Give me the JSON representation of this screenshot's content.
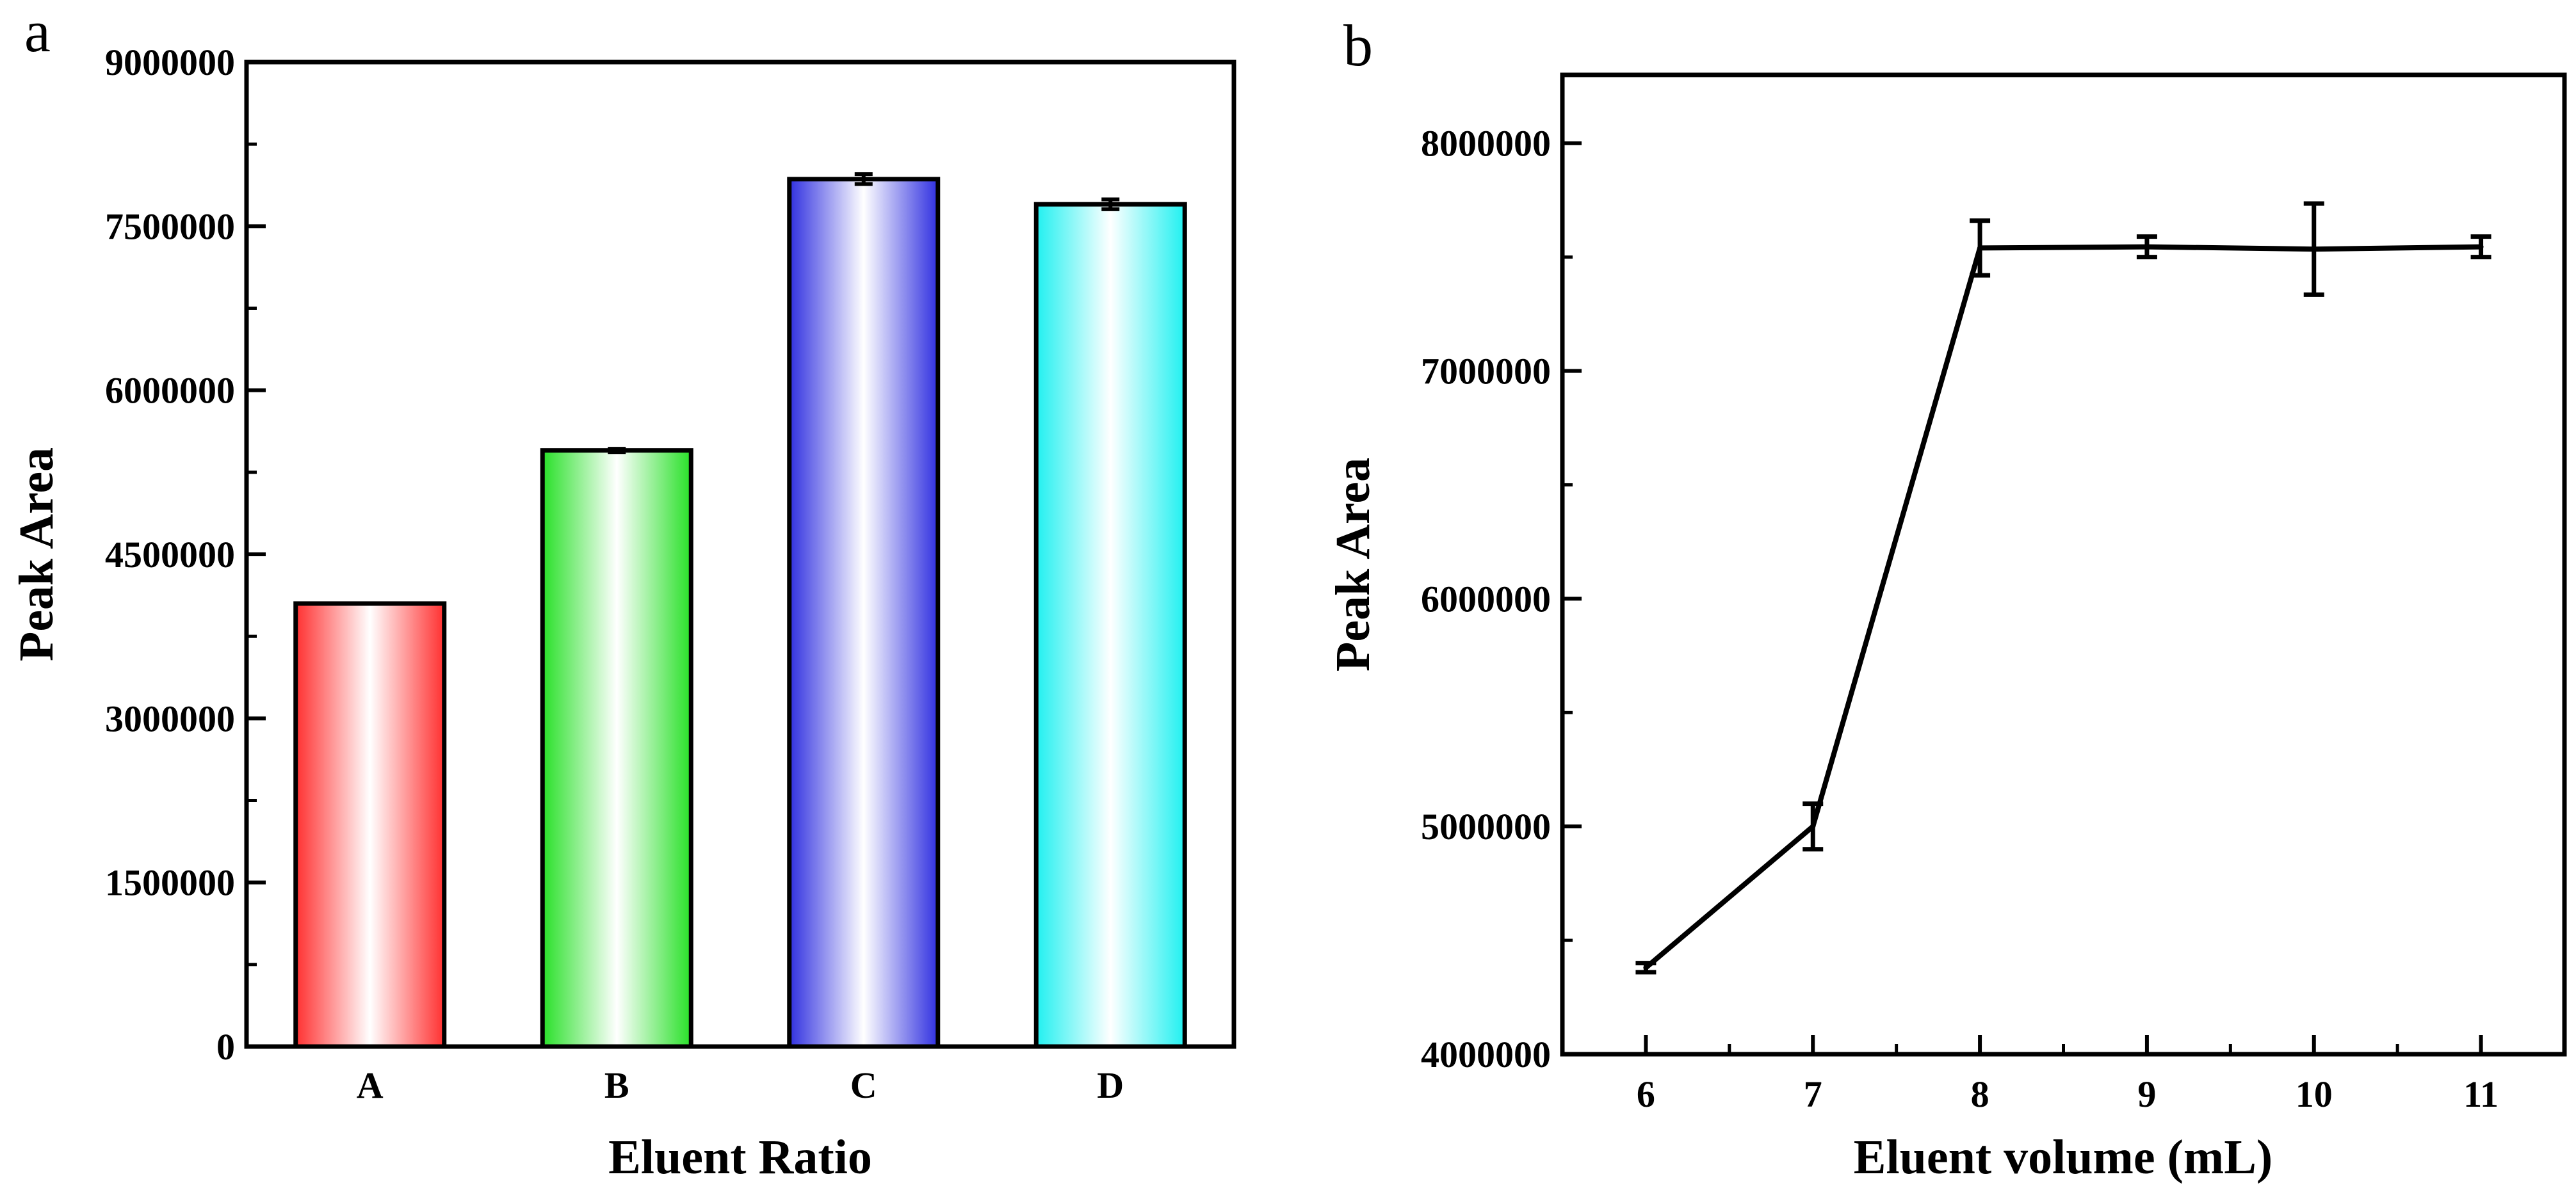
{
  "panels": [
    {
      "label": "a"
    },
    {
      "label": "b"
    }
  ],
  "chart_data": [
    {
      "type": "bar",
      "title": "",
      "xlabel": "Eluent Ratio",
      "ylabel": "Peak Area",
      "categories": [
        "A",
        "B",
        "C",
        "D"
      ],
      "values": [
        4050000,
        5450000,
        7930000,
        7700000
      ],
      "errors": [
        0,
        15000,
        45000,
        45000
      ],
      "colors": [
        "#ff3030",
        "#28e028",
        "#3030e0",
        "#20f0f0"
      ],
      "ylim": [
        0,
        9000000
      ],
      "yticks": [
        0,
        1500000,
        3000000,
        4500000,
        6000000,
        7500000,
        9000000
      ],
      "ytick_labels": [
        "0",
        "1500000",
        "3000000",
        "4500000",
        "6000000",
        "7500000",
        "9000000"
      ],
      "grid": false
    },
    {
      "type": "line",
      "title": "",
      "xlabel": "Eluent volume (mL)",
      "ylabel": "Peak Area",
      "x": [
        6,
        7,
        8,
        9,
        10,
        11
      ],
      "y": [
        4380000,
        5000000,
        7540000,
        7545000,
        7535000,
        7545000
      ],
      "errors": [
        20000,
        100000,
        120000,
        45000,
        200000,
        45000
      ],
      "xlim": [
        5.5,
        11.5
      ],
      "ylim": [
        4000000,
        8300000
      ],
      "xticks": [
        6,
        7,
        8,
        9,
        10,
        11
      ],
      "xtick_labels": [
        "6",
        "7",
        "8",
        "9",
        "10",
        "11"
      ],
      "yticks": [
        4000000,
        5000000,
        6000000,
        7000000,
        8000000
      ],
      "ytick_labels": [
        "4000000",
        "5000000",
        "6000000",
        "7000000",
        "8000000"
      ],
      "grid": false
    }
  ]
}
